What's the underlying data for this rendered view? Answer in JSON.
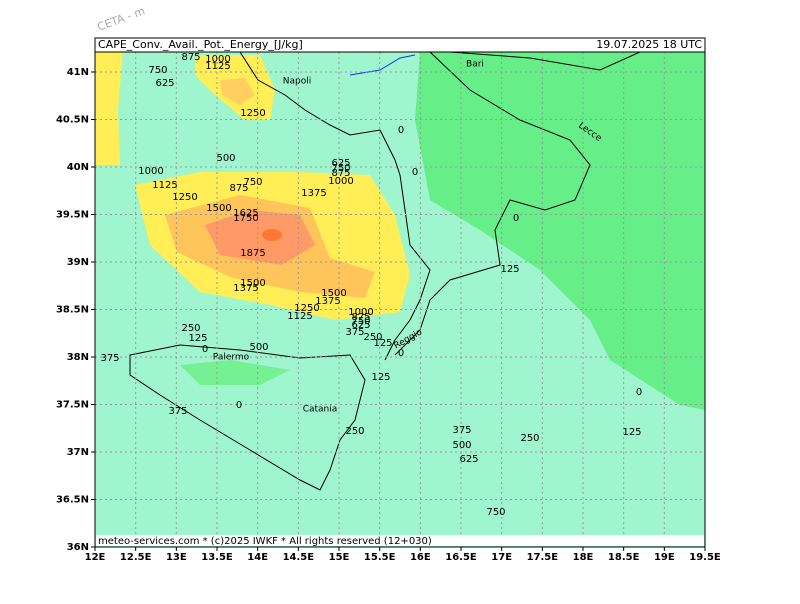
{
  "header": {
    "title": "CAPE_Conv._Avail._Pot._Energy_[J/kg]",
    "timestamp": "19.07.2025 18 UTC",
    "watermark": "CETA - m"
  },
  "footer": "meteo-services.com * (c)2025 IWKF * All rights reserved (12+030)",
  "lat_labels": [
    "41N",
    "40.5N",
    "40N",
    "39.5N",
    "39N",
    "38.5N",
    "38N",
    "37.5N",
    "37N",
    "36.5N",
    "36N"
  ],
  "lon_labels": [
    "12E",
    "12.5E",
    "13E",
    "13.5E",
    "14E",
    "14.5E",
    "15E",
    "15.5E",
    "16E",
    "16.5E",
    "17E",
    "17.5E",
    "18E",
    "18.5E",
    "19E",
    "19.5E"
  ],
  "cities": [
    {
      "label": "Napoli"
    },
    {
      "label": "Bari"
    },
    {
      "label": "Lecce"
    },
    {
      "label": "Palermo"
    },
    {
      "label": "Catania"
    },
    {
      "label": "Reggio"
    }
  ],
  "contour_labels": [
    "875",
    "1000",
    "1125",
    "750",
    "625",
    "1250",
    "500",
    "625",
    "750",
    "875",
    "1000",
    "1375",
    "1000",
    "1125",
    "1250",
    "875",
    "750",
    "1500",
    "1625",
    "1750",
    "1875",
    "1500",
    "1375",
    "1500",
    "1375",
    "1250",
    "1125",
    "1000",
    "875",
    "750",
    "625",
    "375",
    "250",
    "125",
    "0",
    "250",
    "125",
    "0",
    "500",
    "375",
    "125",
    "375",
    "0",
    "250",
    "375",
    "500",
    "625",
    "250",
    "125",
    "0",
    "750",
    "125",
    "0",
    "0",
    "0"
  ]
}
